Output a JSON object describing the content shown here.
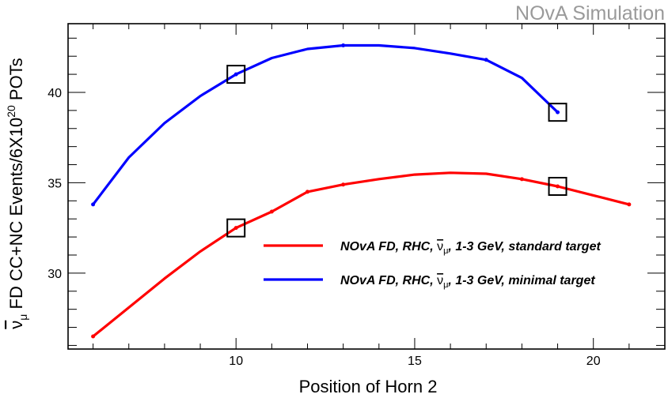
{
  "watermark": "NOvA Simulation",
  "chart_data": {
    "type": "line",
    "xlabel": "Position of Horn 2",
    "ylabel": "ν̄μ FD CC+NC Events/6X10^20 POTs",
    "ylabel_parts": {
      "symbol": "ν",
      "sub": "μ",
      "text1": " FD CC+NC Events/6X10",
      "sup": "20",
      "text2": " POTs"
    },
    "xlim": [
      5.3,
      22.0
    ],
    "ylim": [
      25.8,
      43.8
    ],
    "x_ticks": [
      10,
      15,
      20
    ],
    "y_ticks": [
      30,
      35,
      40
    ],
    "grid": false,
    "legend_position": "center-right",
    "series": [
      {
        "legend": {
          "before": "NOvA FD, RHC, ",
          "symbol": "ν",
          "sub": "μ",
          "after": ", 1-3 GeV, standard target"
        },
        "color": "#ff0000",
        "x": [
          6,
          10,
          11,
          12,
          13,
          18,
          19,
          21
        ],
        "y": [
          26.5,
          32.5,
          33.4,
          34.5,
          34.9,
          35.2,
          34.8,
          33.8
        ],
        "curve": [
          [
            6,
            26.5
          ],
          [
            7,
            28.1
          ],
          [
            8,
            29.7
          ],
          [
            9,
            31.2
          ],
          [
            10,
            32.5
          ],
          [
            11,
            33.4
          ],
          [
            12,
            34.5
          ],
          [
            13,
            34.9
          ],
          [
            14,
            35.2
          ],
          [
            15,
            35.45
          ],
          [
            16,
            35.55
          ],
          [
            17,
            35.5
          ],
          [
            18,
            35.2
          ],
          [
            19,
            34.8
          ],
          [
            20,
            34.3
          ],
          [
            21,
            33.8
          ]
        ],
        "box_markers_x": [
          10,
          19
        ]
      },
      {
        "legend": {
          "before": "NOvA FD, RHC, ",
          "symbol": "ν",
          "sub": "μ",
          "after": ", 1-3 GeV, minimal target"
        },
        "color": "#0000ff",
        "x": [
          6,
          10,
          13,
          17,
          19
        ],
        "y": [
          33.8,
          41.0,
          42.6,
          41.8,
          38.9
        ],
        "curve": [
          [
            6,
            33.8
          ],
          [
            7,
            36.4
          ],
          [
            8,
            38.3
          ],
          [
            9,
            39.8
          ],
          [
            10,
            41.0
          ],
          [
            11,
            41.9
          ],
          [
            12,
            42.4
          ],
          [
            13,
            42.6
          ],
          [
            14,
            42.6
          ],
          [
            15,
            42.45
          ],
          [
            16,
            42.15
          ],
          [
            17,
            41.8
          ],
          [
            18,
            40.8
          ],
          [
            19,
            38.9
          ]
        ],
        "box_markers_x": [
          10,
          19
        ]
      }
    ]
  }
}
